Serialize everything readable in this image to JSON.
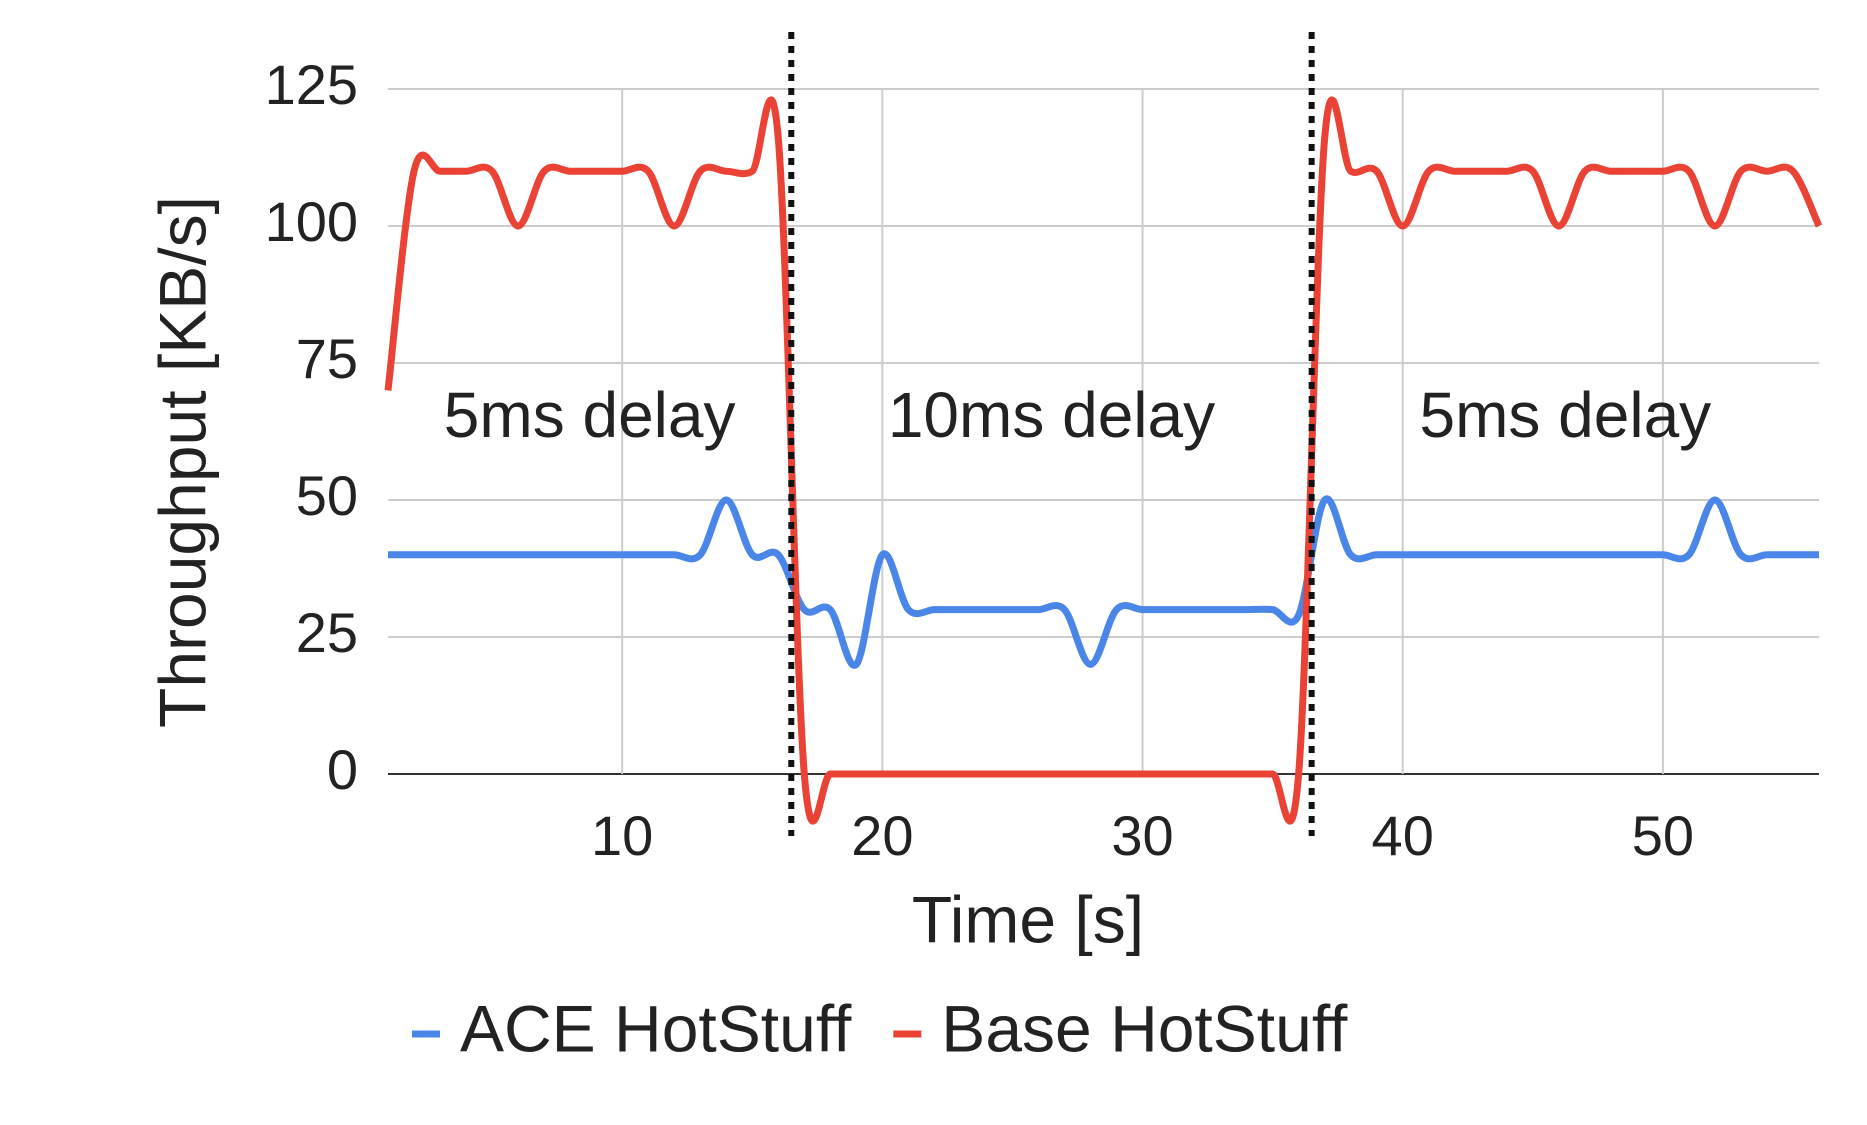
{
  "chart_data": {
    "type": "line",
    "x_label": "Time [s]",
    "y_label": "Throughput [KB/s]",
    "x": [
      1,
      2,
      3,
      4,
      5,
      6,
      7,
      8,
      9,
      10,
      11,
      12,
      13,
      14,
      15,
      16,
      17,
      18,
      19,
      20,
      21,
      22,
      23,
      24,
      25,
      26,
      27,
      28,
      29,
      30,
      31,
      32,
      33,
      34,
      35,
      36,
      37,
      38,
      39,
      40,
      41,
      42,
      43,
      44,
      45,
      46,
      47,
      48,
      49,
      50,
      51,
      52,
      53,
      54,
      55,
      56
    ],
    "series": [
      {
        "name": "ACE HotStuff",
        "color": "#4a86e8",
        "values": [
          40,
          40,
          40,
          40,
          40,
          40,
          40,
          40,
          40,
          40,
          40,
          40,
          40,
          50,
          40,
          40,
          30,
          30,
          20,
          40,
          30,
          30,
          30,
          30,
          30,
          30,
          30,
          20,
          30,
          30,
          30,
          30,
          30,
          30,
          30,
          29,
          50,
          40,
          40,
          40,
          40,
          40,
          40,
          40,
          40,
          40,
          40,
          40,
          40,
          40,
          40,
          50,
          40,
          40,
          40,
          40
        ]
      },
      {
        "name": "Base HotStuff",
        "color": "#ea4335",
        "values": [
          70,
          110,
          110,
          110,
          110,
          100,
          110,
          110,
          110,
          110,
          110,
          100,
          110,
          110,
          110,
          116,
          0,
          0,
          0,
          0,
          0,
          0,
          0,
          0,
          0,
          0,
          0,
          0,
          0,
          0,
          0,
          0,
          0,
          0,
          0,
          0,
          116,
          110,
          110,
          100,
          110,
          110,
          110,
          110,
          110,
          100,
          110,
          110,
          110,
          110,
          110,
          100,
          110,
          110,
          110,
          100
        ]
      }
    ],
    "xlim": [
      1,
      56
    ],
    "xticks": [
      10,
      20,
      30,
      40,
      50
    ],
    "ylim": [
      0,
      125
    ],
    "yticks": [
      0,
      25,
      50,
      75,
      100,
      125
    ],
    "grid": true,
    "legend": "bottom",
    "vlines": [
      16.5,
      36.5
    ],
    "annotations": [
      "5ms delay",
      "10ms delay",
      "5ms delay"
    ]
  }
}
